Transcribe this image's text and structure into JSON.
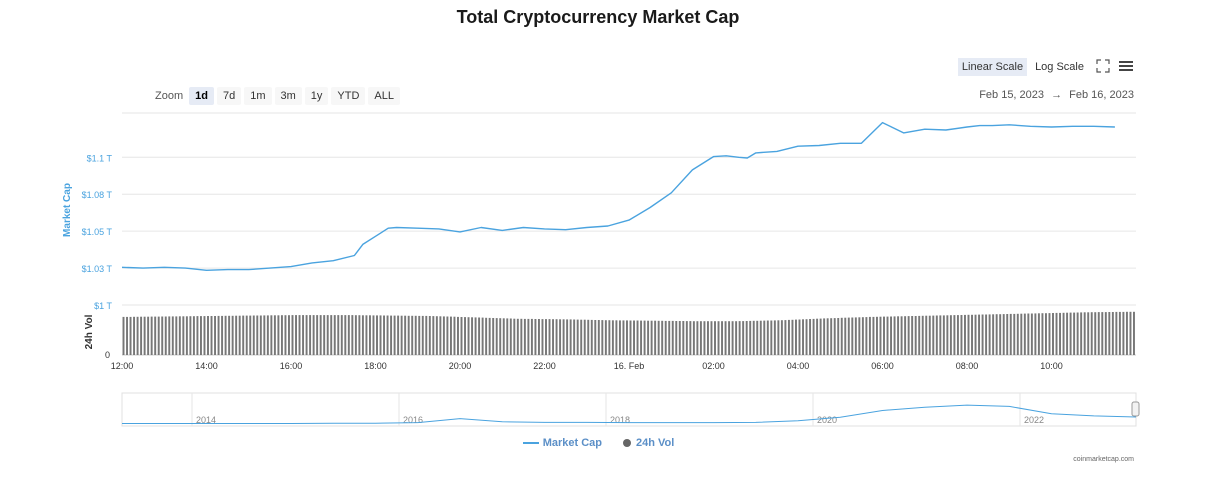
{
  "title": "Total Cryptocurrency Market Cap",
  "zoom": {
    "label": "Zoom",
    "buttons": [
      "1d",
      "7d",
      "1m",
      "3m",
      "1y",
      "YTD",
      "ALL"
    ],
    "active": "1d"
  },
  "scale": {
    "linear_label": "Linear Scale",
    "log_label": "Log Scale",
    "active": "linear"
  },
  "range": {
    "from": "Feb 15, 2023",
    "arrow": "→",
    "to": "Feb 16, 2023"
  },
  "icons": {
    "fullscreen": "fullscreen-icon",
    "menu": "menu-icon"
  },
  "colors": {
    "line": "#4aa3df",
    "volume": "#777777",
    "axis_label": "#4aa3df",
    "grid": "#e6e6e6"
  },
  "chart_data": {
    "type": "line",
    "title": "Total Cryptocurrency Market Cap",
    "time_labels": [
      "12:00",
      "14:00",
      "16:00",
      "18:00",
      "20:00",
      "22:00",
      "16. Feb",
      "02:00",
      "04:00",
      "06:00",
      "08:00",
      "10:00"
    ],
    "market_cap": {
      "name": "Market Cap",
      "ylabel": "Market Cap",
      "unit": "T",
      "ylim": [
        1.0,
        1.13
      ],
      "tick_labels": [
        "$1 T",
        "$1.03 T",
        "$1.05 T",
        "$1.08 T",
        "$1.1 T"
      ],
      "tick_values": [
        1.0,
        1.025,
        1.05,
        1.075,
        1.1
      ],
      "x_hours": [
        0,
        0.5,
        1,
        1.5,
        2,
        2.5,
        3,
        3.5,
        4,
        4.5,
        5,
        5.5,
        5.7,
        6,
        6.3,
        6.5,
        7,
        7.5,
        8,
        8.5,
        9,
        9.5,
        10,
        10.5,
        11,
        11.5,
        12,
        12.5,
        13,
        13.5,
        14,
        14.3,
        14.6,
        14.8,
        15,
        15.5,
        16,
        16.5,
        17,
        17.5,
        18,
        18.5,
        19,
        19.5,
        20,
        20.3,
        20.6,
        21,
        21.5,
        22,
        22.5,
        23,
        23.5
      ],
      "values": [
        1.0255,
        1.025,
        1.0255,
        1.025,
        1.0235,
        1.024,
        1.024,
        1.025,
        1.026,
        1.0285,
        1.03,
        1.0335,
        1.041,
        1.0465,
        1.052,
        1.0525,
        1.052,
        1.0515,
        1.0495,
        1.0525,
        1.0505,
        1.0525,
        1.0515,
        1.051,
        1.0525,
        1.0535,
        1.0575,
        1.066,
        1.076,
        1.0915,
        1.1005,
        1.101,
        1.1,
        1.0995,
        1.103,
        1.104,
        1.1075,
        1.108,
        1.1095,
        1.1095,
        1.1235,
        1.1165,
        1.119,
        1.1185,
        1.1205,
        1.1215,
        1.1215,
        1.122,
        1.121,
        1.1205,
        1.121,
        1.121,
        1.1205
      ]
    },
    "volume": {
      "name": "24h Vol",
      "ylabel": "24h Vol",
      "tick_labels": [
        "0"
      ],
      "ylim": [
        0,
        1.0
      ],
      "values": [
        0.81,
        0.82,
        0.83,
        0.84,
        0.85,
        0.85,
        0.84,
        0.83,
        0.8,
        0.77,
        0.76,
        0.74,
        0.73,
        0.72,
        0.72,
        0.74,
        0.78,
        0.81,
        0.83,
        0.85,
        0.87,
        0.89,
        0.91,
        0.92
      ]
    },
    "navigator": {
      "year_labels": [
        "2014",
        "2016",
        "2018",
        "2020",
        "2022"
      ],
      "series": [
        0.02,
        0.02,
        0.02,
        0.02,
        0.02,
        0.03,
        0.03,
        0.05,
        0.2,
        0.08,
        0.06,
        0.06,
        0.05,
        0.05,
        0.05,
        0.06,
        0.12,
        0.25,
        0.5,
        0.62,
        0.7,
        0.65,
        0.38,
        0.3,
        0.26
      ]
    },
    "legend": [
      "Market Cap",
      "24h Vol"
    ],
    "legend_position": "bottom-center",
    "grid": true
  },
  "credit": "coinmarketcap.com"
}
